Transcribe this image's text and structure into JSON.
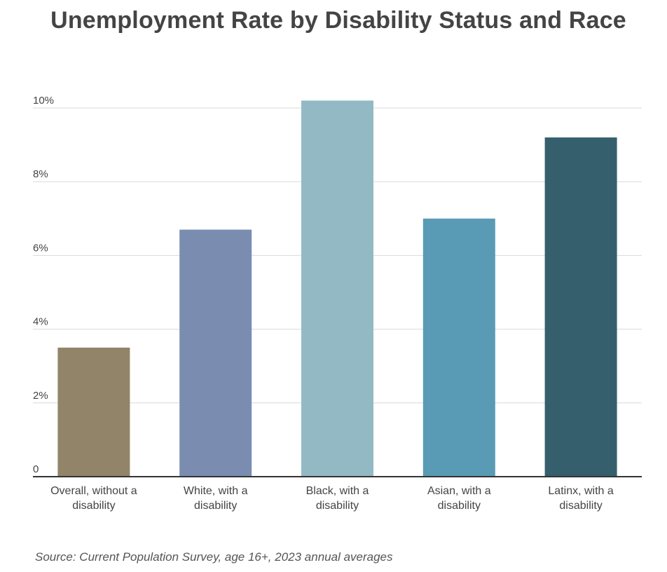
{
  "chart_data": {
    "type": "bar",
    "title": "Unemployment Rate by Disability Status and Race",
    "categories": [
      [
        "Overall, without a",
        "disability"
      ],
      [
        "White, with a",
        "disability"
      ],
      [
        "Black, with a",
        "disability"
      ],
      [
        "Asian, with a",
        "disability"
      ],
      [
        "Latinx, with a",
        "disability"
      ]
    ],
    "values": [
      3.5,
      6.7,
      10.2,
      7.0,
      9.2
    ],
    "colors": [
      "#928469",
      "#7a8db0",
      "#93bac4",
      "#599bb5",
      "#355f6d"
    ],
    "unit": "%",
    "ylim": [
      0,
      10
    ],
    "yticks": [
      0,
      2,
      4,
      6,
      8,
      10
    ],
    "ytick_labels": [
      "0",
      "2%",
      "4%",
      "6%",
      "8%",
      "10%"
    ],
    "grid": true,
    "xlabel": "",
    "ylabel": ""
  },
  "footer": {
    "source": "Source: Current Population Survey, age 16+, 2023 annual averages"
  }
}
